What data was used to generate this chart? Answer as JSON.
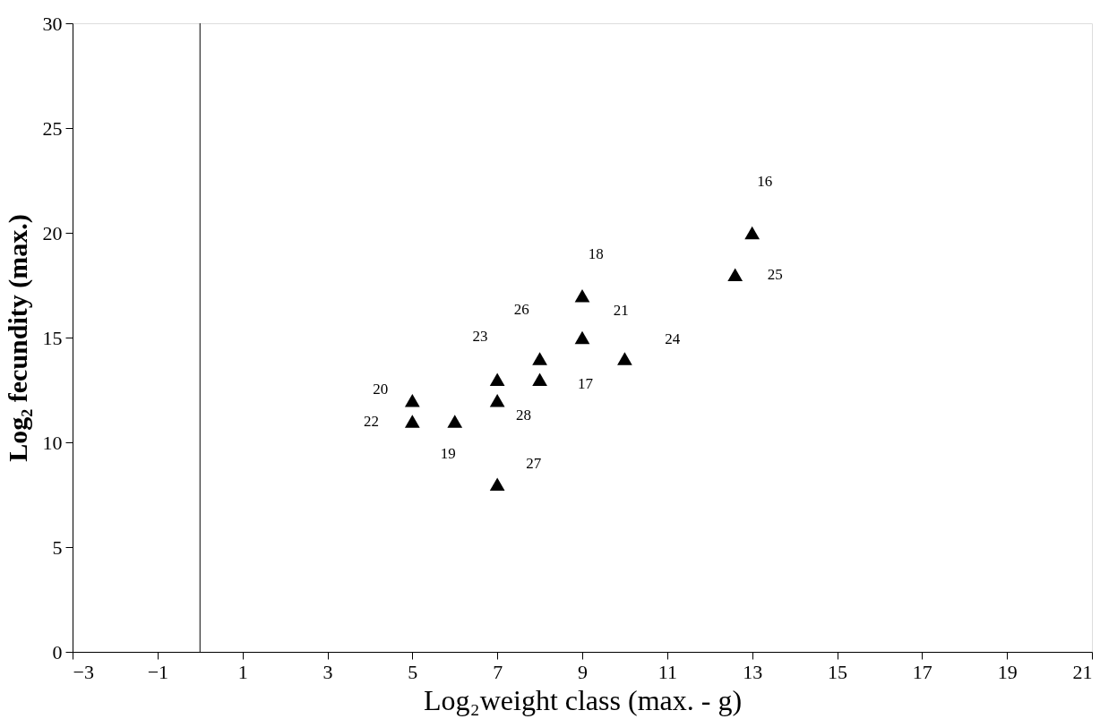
{
  "chart_data": {
    "type": "scatter",
    "xlabel": "Log₂weight class (max. - g)",
    "ylabel": "Log₂ fecundity (max.)",
    "x": [
      5,
      5,
      6,
      7,
      7,
      7,
      8,
      8,
      9,
      9,
      10,
      12.6,
      13
    ],
    "values": [
      12,
      11,
      11,
      13,
      12,
      8,
      14,
      13,
      17,
      15,
      14,
      18,
      20
    ],
    "color": "#000000",
    "marker": "triangle",
    "xlim": [
      -3,
      21
    ],
    "xticks": [
      -3,
      -1,
      1,
      3,
      5,
      7,
      9,
      11,
      13,
      15,
      17,
      19,
      21
    ],
    "ylim": [
      0,
      30
    ],
    "yticks": [
      0,
      5,
      10,
      15,
      20,
      25,
      30
    ],
    "grid": false,
    "ref_lines": [
      {
        "axis": "x",
        "value": 0,
        "color": "#000000"
      }
    ],
    "annotations": [
      {
        "text": "20",
        "x": 5,
        "y": 12
      },
      {
        "text": "22",
        "x": 5,
        "y": 11
      },
      {
        "text": "19",
        "x": 6,
        "y": 11
      },
      {
        "text": "23",
        "x": 7,
        "y": 13
      },
      {
        "text": "28",
        "x": 7,
        "y": 12
      },
      {
        "text": "27",
        "x": 7,
        "y": 8
      },
      {
        "text": "26",
        "x": 8,
        "y": 14
      },
      {
        "text": "17",
        "x": 8,
        "y": 13
      },
      {
        "text": "18",
        "x": 9,
        "y": 17
      },
      {
        "text": "21",
        "x": 9,
        "y": 15
      },
      {
        "text": "24",
        "x": 10,
        "y": 14
      },
      {
        "text": "25",
        "x": 12.6,
        "y": 18
      },
      {
        "text": "16",
        "x": 13,
        "y": 20
      }
    ]
  }
}
